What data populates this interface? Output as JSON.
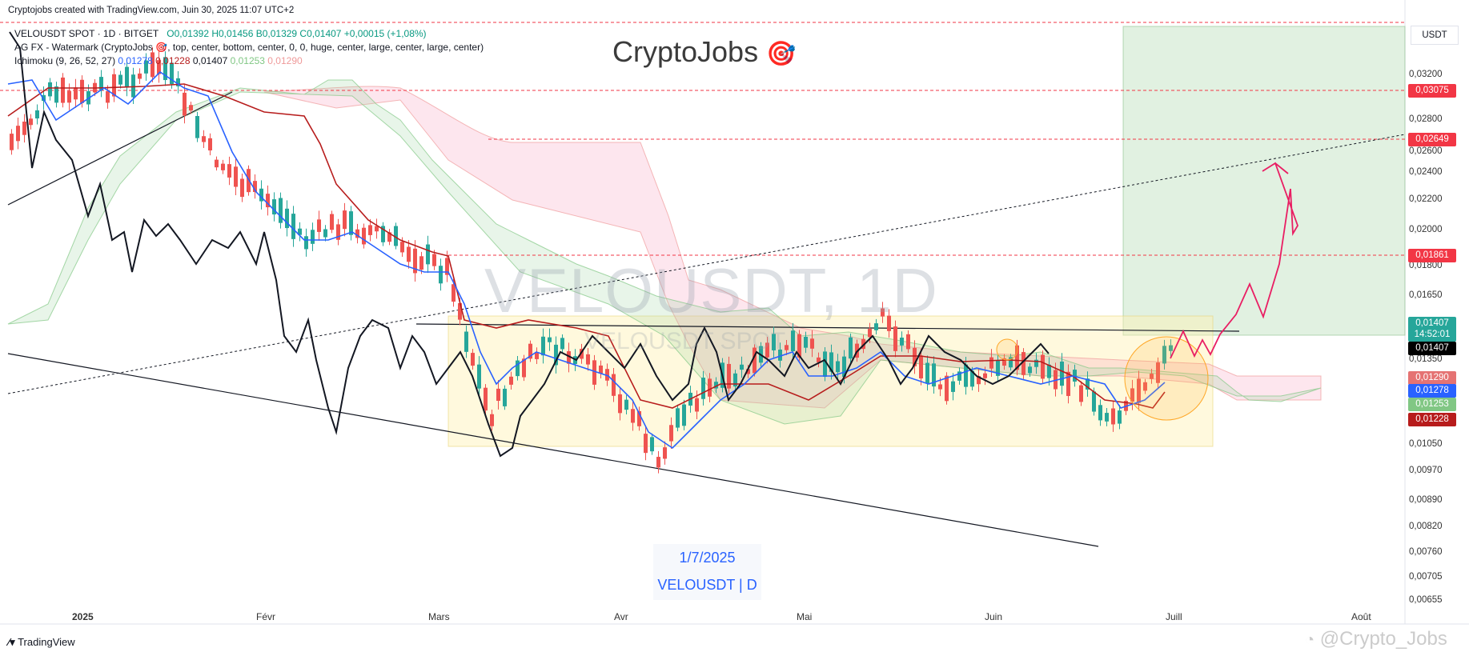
{
  "header": {
    "attribution": "Cryptojobs created with TradingView.com, Juin 30, 2025 11:07 UTC+2",
    "symbol": "VELOUSDT SPOT · 1D · BITGET",
    "ohlc": "O0,01392  H0,01456  B0,01329  C0,01407  +0,00015 (+1,08%)",
    "watermark_indicator": "AG FX - Watermark (CryptoJobs 🎯, top, center, bottom, center, 0, 0, huge, center, large, center, large, center)",
    "ichimoku_label": "Ichimoku (9, 26, 52, 27)",
    "ichimoku_values": [
      "0,01278",
      "0,01228",
      "0,01407",
      "0,01253",
      "0,01290"
    ],
    "ichimoku_colors": [
      "#2962ff",
      "#b71c1c",
      "#131722",
      "#81c784",
      "#ef9a9a"
    ]
  },
  "brand": {
    "name": "CryptoJobs",
    "emoji": "🎯"
  },
  "watermark": {
    "big": "VELOUSDT, 1D",
    "small": "VELOUSDT SPOT"
  },
  "date_stamp": {
    "date": "1/7/2025",
    "pair": "VELOUSDT | D"
  },
  "currency_button": "USDT",
  "price_axis": {
    "ticks": [
      "0,03200",
      "0,02800",
      "0,02600",
      "0,02400",
      "0,02200",
      "0,02000",
      "0,01800",
      "0,01650",
      "0,01350",
      "0,01050",
      "0,00970",
      "0,00890",
      "0,00820",
      "0,00760",
      "0,00705",
      "0,00655"
    ],
    "labels": [
      {
        "text": "0,03075",
        "color": "#f23645"
      },
      {
        "text": "0,02649",
        "color": "#f23645"
      },
      {
        "text": "0,01861",
        "color": "#f23645"
      },
      {
        "text": "0,01407",
        "color": "#26a69a"
      },
      {
        "text": "14:52:01",
        "color": "#26a69a"
      },
      {
        "text": "0,01407",
        "color": "#000000"
      },
      {
        "text": "0,01290",
        "color": "#e57373"
      },
      {
        "text": "0,01278",
        "color": "#2962ff"
      },
      {
        "text": "0,01253",
        "color": "#81c784"
      },
      {
        "text": "0,01228",
        "color": "#b71c1c"
      }
    ]
  },
  "time_axis": [
    "2025",
    "Févr",
    "Mars",
    "Avr",
    "Mai",
    "Juin",
    "Juill",
    "Août"
  ],
  "footer": {
    "logo": "TradingView",
    "credit": "@Crypto_Jobs"
  },
  "colors": {
    "up": "#26a69a",
    "down": "#ef5350",
    "target": "#f23645",
    "zone": "#c8e6c9"
  }
}
